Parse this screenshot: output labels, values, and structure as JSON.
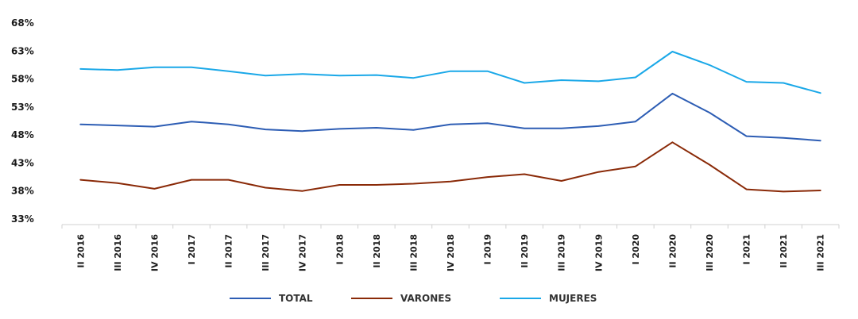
{
  "chart_data": {
    "type": "line",
    "title": "",
    "xlabel": "",
    "ylabel": "",
    "categories": [
      "II 2016",
      "III 2016",
      "IV 2016",
      "I 2017",
      "II 2017",
      "III 2017",
      "IV 2017",
      "I 2018",
      "II 2018",
      "III 2018",
      "IV 2018",
      "I 2019",
      "II 2019",
      "III 2019",
      "IV 2019",
      "I 2020",
      "II 2020",
      "III 2020",
      "I 2021",
      "II 2021",
      "III 2021"
    ],
    "ylim": [
      33,
      68
    ],
    "yticks": [
      33,
      38,
      43,
      48,
      53,
      58,
      63,
      68
    ],
    "ytick_labels": [
      "33%",
      "38%",
      "43%",
      "48%",
      "53%",
      "58%",
      "63%",
      "68%"
    ],
    "grid": false,
    "legend_position": "bottom",
    "series": [
      {
        "name": "TOTAL",
        "color": "#2d5db4",
        "values": [
          49.9,
          49.7,
          49.5,
          50.4,
          49.9,
          49.0,
          48.7,
          49.1,
          49.3,
          48.9,
          49.9,
          50.1,
          49.2,
          49.2,
          49.6,
          50.4,
          55.4,
          52.0,
          47.8,
          47.5,
          47.0
        ]
      },
      {
        "name": "VARONES",
        "color": "#8a2a08",
        "values": [
          40.0,
          39.4,
          38.4,
          40.0,
          40.0,
          38.6,
          38.0,
          39.1,
          39.1,
          39.3,
          39.7,
          40.5,
          41.0,
          39.8,
          41.4,
          42.4,
          46.7,
          42.7,
          38.3,
          37.9,
          38.1
        ]
      },
      {
        "name": "MUJERES",
        "color": "#1aa8e8",
        "values": [
          59.8,
          59.6,
          60.1,
          60.1,
          59.4,
          58.6,
          58.9,
          58.6,
          58.7,
          58.2,
          59.4,
          59.4,
          57.3,
          57.8,
          57.6,
          58.3,
          62.9,
          60.5,
          57.5,
          57.3,
          55.5
        ]
      }
    ]
  }
}
